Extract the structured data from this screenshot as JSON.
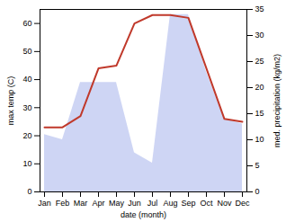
{
  "chart_data": {
    "type": "line",
    "categories": [
      "Jan",
      "Feb",
      "Mar",
      "Apr",
      "May",
      "Jun",
      "Jul",
      "Aug",
      "Sep",
      "Oct",
      "Nov",
      "Dec"
    ],
    "xlabel": "date (month)",
    "ylabel": "max temp (C)",
    "y2label": "med. precipitation (kg/m2)",
    "series": [
      {
        "type": "line",
        "color": "#c0392b",
        "values": [
          23,
          23,
          27,
          44,
          45,
          60,
          63,
          63,
          62,
          44,
          26,
          25
        ]
      },
      {
        "type": "area",
        "color": "#c5cef2",
        "axis": "y2",
        "values": [
          11,
          10,
          21,
          21,
          21,
          7.5,
          5.5,
          34,
          34,
          23,
          14,
          13
        ]
      }
    ],
    "ylim": [
      0,
      65
    ],
    "yticks": [
      0,
      10,
      20,
      30,
      40,
      50,
      60
    ],
    "y2lim": [
      0,
      35
    ],
    "y2ticks": [
      0,
      5,
      10,
      15,
      20,
      25,
      30,
      35
    ]
  }
}
